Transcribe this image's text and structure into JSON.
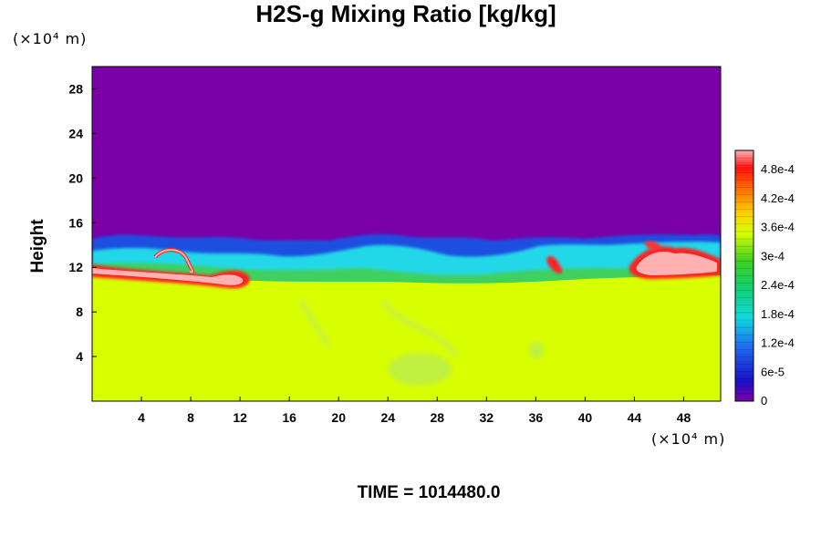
{
  "chart_data": {
    "type": "heatmap",
    "title": "H2S-g Mixing Ratio [kg/kg]",
    "xlabel": "",
    "ylabel": "Height",
    "x_unit": "(×10⁴ m)",
    "y_unit": "(×10⁴ m)",
    "xlim": [
      0,
      51
    ],
    "ylim": [
      0,
      30
    ],
    "x_ticks": [
      "4",
      "8",
      "12",
      "16",
      "20",
      "24",
      "28",
      "32",
      "36",
      "40",
      "44",
      "48"
    ],
    "y_ticks": [
      "4",
      "8",
      "12",
      "16",
      "20",
      "24",
      "28"
    ],
    "colorbar": {
      "min": 0,
      "max": 0.00052,
      "tick_labels": [
        "0",
        "6e-5",
        "1.2e-4",
        "1.8e-4",
        "2.4e-4",
        "3e-4",
        "3.6e-4",
        "4.2e-4",
        "4.8e-4"
      ],
      "tick_values": [
        0,
        6e-05,
        0.00012,
        0.00018,
        0.00024,
        0.0003,
        0.00036,
        0.00042,
        0.00048
      ]
    },
    "field_summary": {
      "lower_layer_value": 0.00035,
      "upper_layer_value": 0,
      "interface_height_approx": 12.5,
      "elevated_pockets_value": 0.0005
    },
    "time_label": "TIME = 1014480.0"
  }
}
